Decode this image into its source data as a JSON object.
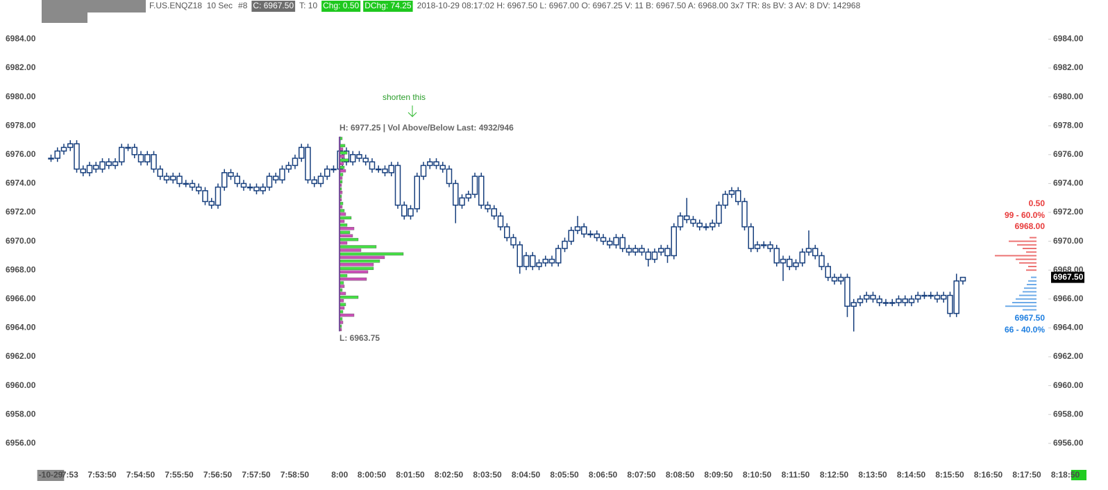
{
  "header": [
    {
      "text": "F.US.ENQZ18  10 Sec"
    },
    {
      "text": "#8"
    },
    {
      "text": "C: 6967.50",
      "background": "#6d6d6d",
      "color": "#ffffff"
    },
    {
      "text": "T: 10"
    },
    {
      "text": "Chg: 0.50",
      "background": "#1ec81e",
      "color": "#ffffff"
    },
    {
      "text": "DChg: 74.25",
      "background": "#1ec81e",
      "color": "#ffffff"
    },
    {
      "text": "2018-10-29 08:17:02 H: 6967.50 L: 6967.00 O: 6967.25 V: 11 B: 6967.50 A: 6968.00 3x7 TR: 8s BV: 3 AV: 8 DV: 142968"
    }
  ],
  "chart_data": {
    "type": "candlestick",
    "categories": [
      "-10-29",
      null,
      null,
      "7:53",
      null,
      null,
      null,
      null,
      "7:53:50",
      null,
      null,
      null,
      null,
      null,
      "7:54:50",
      null,
      null,
      null,
      null,
      null,
      "7:55:50",
      null,
      null,
      null,
      null,
      null,
      "7:56:50",
      null,
      null,
      null,
      null,
      null,
      "7:57:50",
      null,
      null,
      null,
      null,
      null,
      "7:58:50",
      null,
      null,
      null,
      null,
      null,
      null,
      "8:00",
      null,
      null,
      null,
      null,
      "8:00:50",
      null,
      null,
      null,
      null,
      null,
      "8:01:50",
      null,
      null,
      null,
      null,
      null,
      "8:02:50",
      null,
      null,
      null,
      null,
      null,
      "8:03:50",
      null,
      null,
      null,
      null,
      null,
      "8:04:50",
      null,
      null,
      null,
      null,
      null,
      "8:05:50",
      null,
      null,
      null,
      null,
      null,
      "8:06:50",
      null,
      null,
      null,
      null,
      null,
      "8:07:50",
      null,
      null,
      null,
      null,
      null,
      "8:08:50",
      null,
      null,
      null,
      null,
      null,
      "8:09:50",
      null,
      null,
      null,
      null,
      null,
      "8:10:50",
      null,
      null,
      null,
      null,
      null,
      "8:11:50",
      null,
      null,
      null,
      null,
      null,
      "8:12:50",
      null,
      null,
      null,
      null,
      null,
      "8:13:50",
      null,
      null,
      null,
      null,
      null,
      "8:14:50",
      null,
      null,
      null,
      null,
      null,
      "8:15:50",
      null,
      null,
      null,
      null,
      null,
      "8:16:50",
      null,
      null,
      null,
      null,
      null,
      "8:17:50",
      null,
      null,
      null,
      null,
      null,
      "8:18:50",
      null
    ],
    "series": [
      {
        "color": "#173f7d",
        "open": [
          6975.75,
          6975.75,
          6976.25,
          6976.5,
          6976.75,
          6975,
          6974.75,
          6975.25,
          6975,
          6975.5,
          6975.25,
          6975.5,
          6976.5,
          6976.5,
          6976,
          6975.5,
          6976,
          6975,
          6974.5,
          6974.25,
          6974.5,
          6974,
          6974,
          6973.75,
          6973.5,
          6972.75,
          6972.5,
          6973.75,
          6974.75,
          6974.5,
          6974,
          6973.75,
          6973.75,
          6973.5,
          6973.75,
          6974.5,
          6974.25,
          6975,
          6975.25,
          6975.75,
          6976.5,
          6974.25,
          6974,
          6974.5,
          6975,
          6975,
          6976.25,
          6975.5,
          6976,
          6975.75,
          6975.5,
          6975,
          6975,
          6974.75,
          6975.25,
          6972.5,
          6971.75,
          6972.25,
          6974.5,
          6975.25,
          6975.5,
          6975.25,
          6975,
          6974,
          6972.5,
          6973,
          6973.25,
          6974.5,
          6972.5,
          6972.25,
          6971.75,
          6971,
          6970.25,
          6969.75,
          6968.25,
          6969,
          6968.25,
          6968.5,
          6968.75,
          6968.5,
          6969.5,
          6970,
          6970.75,
          6971,
          6970.5,
          6970.5,
          6970.25,
          6970,
          6969.75,
          6970.25,
          6969.5,
          6969.25,
          6969.5,
          6969.25,
          6968.75,
          6969.25,
          6969.5,
          6969,
          6971,
          6971.75,
          6971.5,
          6971.25,
          6971,
          6971,
          6971.25,
          6972.5,
          6973.25,
          6973.5,
          6972.75,
          6971,
          6969.5,
          6969.75,
          6969.75,
          6969.5,
          6968.5,
          6968.75,
          6968.25,
          6968.5,
          6969.25,
          6969.5,
          6969,
          6968.25,
          6967.5,
          6967.25,
          6967.5,
          6965.5,
          6965.75,
          6966,
          6966.25,
          6966,
          6965.75,
          6965.75,
          6965.75,
          6966,
          6965.75,
          6966,
          6966.25,
          6966.25,
          6966.25,
          6966,
          6966.25,
          6965,
          6967.25,
          null,
          null,
          null,
          null,
          null,
          null,
          null,
          null,
          null,
          null,
          null,
          null,
          null,
          null,
          null,
          null,
          null
        ],
        "high": [
          6976,
          6976.5,
          6976.75,
          6977,
          6977,
          6975.25,
          6975.5,
          6975.5,
          6975.75,
          6975.75,
          6975.75,
          6976.75,
          6976.75,
          6976.75,
          6976.25,
          6976.25,
          6976.25,
          6975.25,
          6974.75,
          6974.75,
          6974.75,
          6974.25,
          6974.25,
          6974,
          6973.75,
          6973,
          6974,
          6975,
          6975,
          6974.75,
          6974.25,
          6974,
          6974,
          6974,
          6974.75,
          6974.75,
          6975.25,
          6975.5,
          6976,
          6976.75,
          6976.75,
          6974.5,
          6974.75,
          6975.25,
          6975.25,
          6977.25,
          6976.5,
          6976.25,
          6976.25,
          6976,
          6975.75,
          6975.25,
          6975.25,
          6975.5,
          6975.5,
          6972.75,
          6972.5,
          6974.75,
          6975.5,
          6975.75,
          6975.75,
          6975.5,
          6975.25,
          6974.25,
          6973.25,
          6973.5,
          6974.75,
          6974.75,
          6972.75,
          6972.5,
          6972,
          6971.25,
          6970.5,
          6970,
          6969.25,
          6969.25,
          6968.75,
          6969,
          6969,
          6969.75,
          6970.25,
          6971,
          6971.75,
          6971.25,
          6970.75,
          6970.75,
          6970.5,
          6970.25,
          6970.5,
          6970.5,
          6969.75,
          6969.75,
          6969.75,
          6969.5,
          6969.5,
          6969.75,
          6969.75,
          6971.25,
          6972,
          6973,
          6971.75,
          6971.5,
          6971.25,
          6971.5,
          6972.75,
          6973.5,
          6973.75,
          6973.75,
          6973,
          6971.25,
          6970,
          6970,
          6970,
          6969.75,
          6969,
          6969,
          6968.75,
          6969.5,
          6970.75,
          6969.75,
          6969.25,
          6968.5,
          6967.75,
          6967.75,
          6967.75,
          6966,
          6966.25,
          6966.5,
          6966.5,
          6966.25,
          6966,
          6966,
          6966.25,
          6966.25,
          6966.25,
          6966.5,
          6966.5,
          6966.5,
          6966.5,
          6966.5,
          6966.5,
          6967.75,
          6967.5,
          null,
          null,
          null,
          null,
          null,
          null,
          null,
          null,
          null,
          null,
          null,
          null,
          null,
          null,
          null,
          null,
          null
        ],
        "low": [
          6975.5,
          6975.5,
          6976,
          6976.25,
          6974.75,
          6974.5,
          6974.5,
          6974.75,
          6974.75,
          6975,
          6975,
          6975.25,
          6976.25,
          6975.75,
          6975.25,
          6975.25,
          6974.75,
          6974.25,
          6974,
          6974,
          6973.75,
          6973.75,
          6973.5,
          6973.25,
          6972.5,
          6972.25,
          6972.25,
          6973.5,
          6974.25,
          6973.75,
          6973.5,
          6973.5,
          6973.25,
          6973.25,
          6973.5,
          6974,
          6974,
          6974.75,
          6975,
          6975.5,
          6974,
          6973.75,
          6973.75,
          6974.25,
          6974.75,
          6974.75,
          6975.25,
          6975.25,
          6975.5,
          6975.25,
          6974.75,
          6974.75,
          6974.5,
          6974.5,
          6972.25,
          6971.5,
          6971.5,
          6972,
          6974.25,
          6975,
          6975,
          6974.75,
          6973.75,
          6971.25,
          6972.25,
          6972.75,
          6973,
          6972.25,
          6972,
          6971.5,
          6970.75,
          6970,
          6969.5,
          6967.75,
          6968,
          6968,
          6968,
          6968.25,
          6968.25,
          6968.25,
          6969.25,
          6969.75,
          6970.5,
          6970.25,
          6970.25,
          6970,
          6969.75,
          6969.5,
          6969.5,
          6969.25,
          6969,
          6969,
          6969,
          6968.25,
          6968.5,
          6969,
          6968.5,
          6968.75,
          6970.75,
          6971.25,
          6971,
          6970.75,
          6970.75,
          6970.75,
          6971,
          6972.25,
          6973,
          6972.5,
          6970.75,
          6969.25,
          6969.25,
          6969.5,
          6969.25,
          6968.25,
          6967.25,
          6968,
          6968,
          6968.25,
          6969,
          6968.75,
          6968,
          6967.25,
          6967,
          6967,
          6964.75,
          6963.75,
          6965.5,
          6965.75,
          6965.75,
          6965.5,
          6965.5,
          6965.5,
          6965.5,
          6965.5,
          6965.5,
          6965.75,
          6966,
          6966,
          6965.75,
          6965.75,
          6964.75,
          6964.75,
          6967,
          null,
          null,
          null,
          null,
          null,
          null,
          null,
          null,
          null,
          null,
          null,
          null,
          null,
          null,
          null,
          null,
          null
        ],
        "close": [
          6975.75,
          6976.25,
          6976.5,
          6976.75,
          6975,
          6974.75,
          6975.25,
          6975,
          6975.5,
          6975.25,
          6975.5,
          6976.5,
          6976.5,
          6976,
          6975.5,
          6976,
          6975,
          6974.5,
          6974.25,
          6974.5,
          6974,
          6974,
          6973.75,
          6973.5,
          6972.75,
          6972.5,
          6973.75,
          6974.75,
          6974.5,
          6974,
          6973.75,
          6973.75,
          6973.5,
          6973.75,
          6974.5,
          6974.25,
          6975,
          6975.25,
          6975.75,
          6976.5,
          6974.25,
          6974,
          6974.5,
          6975,
          6975,
          6976.25,
          6975.5,
          6976,
          6975.75,
          6975.5,
          6975,
          6975,
          6974.75,
          6975.25,
          6972.5,
          6971.75,
          6972.25,
          6974.5,
          6975.25,
          6975.5,
          6975.25,
          6975,
          6974,
          6972.5,
          6973,
          6973.25,
          6974.5,
          6972.5,
          6972.25,
          6971.75,
          6971,
          6970.25,
          6969.75,
          6968.25,
          6969,
          6968.25,
          6968.5,
          6968.75,
          6968.5,
          6969.5,
          6970,
          6970.75,
          6971,
          6970.5,
          6970.5,
          6970.25,
          6970,
          6969.75,
          6970.25,
          6969.5,
          6969.25,
          6969.5,
          6969.25,
          6968.75,
          6969.25,
          6969.5,
          6969,
          6971,
          6971.75,
          6971.5,
          6971.25,
          6971,
          6971,
          6971.25,
          6972.5,
          6973.25,
          6973.5,
          6972.75,
          6971,
          6969.5,
          6969.75,
          6969.75,
          6969.5,
          6968.5,
          6968.75,
          6968.25,
          6968.5,
          6969.25,
          6969.5,
          6969,
          6968.25,
          6967.5,
          6967.25,
          6967.5,
          6965.5,
          6965.75,
          6966,
          6966.25,
          6966,
          6965.75,
          6965.75,
          6965.75,
          6966,
          6965.75,
          6966,
          6966.25,
          6966.25,
          6966.25,
          6966,
          6966.25,
          6965,
          6967.25,
          6967.5,
          null,
          null,
          null,
          null,
          null,
          null,
          null,
          null,
          null,
          null,
          null,
          null,
          null,
          null,
          null,
          null,
          null
        ]
      }
    ],
    "ylim": [
      6954.5,
      6985.75
    ],
    "yticks": [
      {
        "value": 6956,
        "label": "6956.00"
      },
      {
        "value": 6958,
        "label": "6958.00"
      },
      {
        "value": 6960,
        "label": "6960.00"
      },
      {
        "value": 6962,
        "label": "6962.00"
      },
      {
        "value": 6964,
        "label": "6964.00"
      },
      {
        "value": 6966,
        "label": "6966.00"
      },
      {
        "value": 6968,
        "label": "6968.00"
      },
      {
        "value": 6970,
        "label": "6970.00"
      },
      {
        "value": 6972,
        "label": "6972.00"
      },
      {
        "value": 6974,
        "label": "6974.00"
      },
      {
        "value": 6976,
        "label": "6976.00"
      },
      {
        "value": 6978,
        "label": "6978.00"
      },
      {
        "value": 6980,
        "label": "6980.00"
      },
      {
        "value": 6982,
        "label": "6982.00"
      },
      {
        "value": 6984,
        "label": "6984.00"
      }
    ],
    "grid": false,
    "last_price_label": "6967.50",
    "annotations": {
      "note": "shorten this",
      "high": "H: 6977.25 | Vol Above/Below Last: 4932/946",
      "low": "L: 6963.75"
    },
    "profile": {
      "green_color": "#44e044",
      "pink_color": "#cc4fb8",
      "levels": [
        6977,
        6976.5,
        6976,
        6975.5,
        6975,
        6974.5,
        6974,
        6973.5,
        6973,
        6972.5,
        6972,
        6971.5,
        6971,
        6970.5,
        6970,
        6969.5,
        6969,
        6968.5,
        6968,
        6967.5,
        6967,
        6966.5,
        6966,
        6965.5,
        6965,
        6964.5,
        6964
      ],
      "green": [
        3,
        7,
        10,
        12,
        6,
        4,
        3,
        2,
        2,
        4,
        6,
        16,
        10,
        14,
        26,
        52,
        91,
        57,
        48,
        10,
        5,
        3,
        26,
        8,
        4,
        3,
        2
      ],
      "pink": [
        0,
        4,
        6,
        5,
        8,
        3,
        2,
        3,
        2,
        3,
        8,
        6,
        20,
        18,
        10,
        30,
        64,
        48,
        40,
        38,
        6,
        8,
        5,
        6,
        20,
        4,
        2
      ]
    },
    "dom": {
      "ask_color": "#e64646",
      "bid_color": "#3d8fe0",
      "ask_levels": [
        6970.25,
        6970,
        6969.75,
        6969.5,
        6969.25,
        6969,
        6968.75,
        6968.5,
        6968.25,
        6968
      ],
      "ask_sizes": [
        10,
        40,
        28,
        20,
        15,
        60,
        30,
        25,
        12,
        15
      ],
      "bid_levels": [
        6967.5,
        6967.25,
        6967,
        6966.75,
        6966.5,
        6966.25,
        6966,
        6965.75,
        6965.5,
        6965.25
      ],
      "bid_sizes": [
        8,
        12,
        14,
        18,
        20,
        25,
        30,
        35,
        45,
        20
      ],
      "ask_labels": [
        "0.50",
        "99 - 60.0%",
        "6968.00"
      ],
      "bid_labels": [
        "6967.50",
        "66 - 40.0%"
      ]
    }
  }
}
